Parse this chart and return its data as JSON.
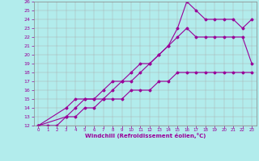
{
  "xlabel": "Windchill (Refroidissement éolien,°C)",
  "bg_color": "#b2ecec",
  "line_color": "#990099",
  "xlim": [
    -0.5,
    23.5
  ],
  "ylim": [
    12,
    26
  ],
  "xticks": [
    0,
    1,
    2,
    3,
    4,
    5,
    6,
    7,
    8,
    9,
    10,
    11,
    12,
    13,
    14,
    15,
    16,
    17,
    18,
    19,
    20,
    21,
    22,
    23
  ],
  "yticks": [
    12,
    13,
    14,
    15,
    16,
    17,
    18,
    19,
    20,
    21,
    22,
    23,
    24,
    25,
    26
  ],
  "line1_x": [
    0,
    1,
    2,
    3,
    4,
    5,
    6,
    7,
    8,
    9,
    10,
    11,
    12,
    13,
    14,
    15,
    16,
    17,
    18,
    19,
    20,
    21,
    22,
    23
  ],
  "line1_y": [
    12,
    12,
    12,
    13,
    13,
    14,
    14,
    15,
    15,
    15,
    16,
    16,
    16,
    17,
    17,
    18,
    18,
    18,
    18,
    18,
    18,
    18,
    18,
    18
  ],
  "line2_x": [
    0,
    3,
    4,
    5,
    6,
    7,
    8,
    9,
    10,
    11,
    12,
    13,
    14,
    15,
    16,
    17,
    18,
    19,
    20,
    21,
    22,
    23
  ],
  "line2_y": [
    12,
    14,
    15,
    15,
    15,
    16,
    17,
    17,
    18,
    19,
    19,
    20,
    21,
    22,
    23,
    22,
    22,
    22,
    22,
    22,
    22,
    19
  ],
  "line3_x": [
    0,
    3,
    4,
    5,
    6,
    7,
    8,
    9,
    10,
    11,
    12,
    13,
    14,
    15,
    16,
    17,
    18,
    19,
    20,
    21,
    22,
    23
  ],
  "line3_y": [
    12,
    13,
    14,
    15,
    15,
    15,
    16,
    17,
    17,
    18,
    19,
    20,
    21,
    23,
    26,
    25,
    24,
    24,
    24,
    24,
    23,
    24
  ]
}
